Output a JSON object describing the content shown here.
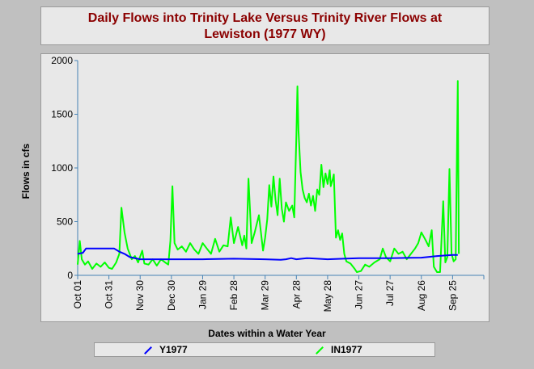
{
  "title_lines": [
    "Daily Flows into Trinity Lake Versus Trinity River Flows at",
    "Lewiston (1977 WY)"
  ],
  "chart_data": {
    "type": "line",
    "title": "Daily Flows into Trinity Lake Versus Trinity River Flows at Lewiston (1977 WY)",
    "xlabel": "Dates within a Water Year",
    "ylabel": "Flows in cfs",
    "ylim": [
      0,
      2000
    ],
    "yticks": [
      0,
      500,
      1000,
      1500,
      2000
    ],
    "xlim": [
      0,
      390
    ],
    "xticks": [
      {
        "day": 0,
        "label": "Oct 01"
      },
      {
        "day": 30,
        "label": "Oct 31"
      },
      {
        "day": 60,
        "label": "Nov 30"
      },
      {
        "day": 90,
        "label": "Dec 30"
      },
      {
        "day": 120,
        "label": "Jan 29"
      },
      {
        "day": 150,
        "label": "Feb 28"
      },
      {
        "day": 180,
        "label": "Mar 29"
      },
      {
        "day": 210,
        "label": "Apr 28"
      },
      {
        "day": 240,
        "label": "May 28"
      },
      {
        "day": 270,
        "label": "Jun 27"
      },
      {
        "day": 300,
        "label": "Jul 27"
      },
      {
        "day": 330,
        "label": "Aug 26"
      },
      {
        "day": 360,
        "label": "Sep 25"
      }
    ],
    "grid": false,
    "legend_position": "bottom",
    "series": [
      {
        "name": "Y1977",
        "color": "#0000ff",
        "points": [
          [
            0,
            200
          ],
          [
            5,
            210
          ],
          [
            8,
            250
          ],
          [
            35,
            250
          ],
          [
            40,
            220
          ],
          [
            45,
            200
          ],
          [
            50,
            170
          ],
          [
            60,
            150
          ],
          [
            90,
            150
          ],
          [
            120,
            150
          ],
          [
            150,
            155
          ],
          [
            180,
            150
          ],
          [
            195,
            145
          ],
          [
            200,
            150
          ],
          [
            205,
            160
          ],
          [
            210,
            150
          ],
          [
            220,
            160
          ],
          [
            240,
            150
          ],
          [
            255,
            155
          ],
          [
            270,
            160
          ],
          [
            300,
            160
          ],
          [
            330,
            165
          ],
          [
            345,
            180
          ],
          [
            360,
            190
          ],
          [
            365,
            190
          ]
        ]
      },
      {
        "name": "IN1977",
        "color": "#00ff00",
        "points": [
          [
            0,
            100
          ],
          [
            2,
            320
          ],
          [
            4,
            150
          ],
          [
            7,
            100
          ],
          [
            10,
            130
          ],
          [
            14,
            60
          ],
          [
            18,
            110
          ],
          [
            22,
            80
          ],
          [
            26,
            120
          ],
          [
            30,
            70
          ],
          [
            33,
            60
          ],
          [
            37,
            120
          ],
          [
            40,
            200
          ],
          [
            42,
            630
          ],
          [
            45,
            400
          ],
          [
            48,
            250
          ],
          [
            52,
            150
          ],
          [
            55,
            180
          ],
          [
            58,
            120
          ],
          [
            62,
            230
          ],
          [
            64,
            110
          ],
          [
            68,
            100
          ],
          [
            72,
            150
          ],
          [
            76,
            90
          ],
          [
            80,
            150
          ],
          [
            84,
            120
          ],
          [
            87,
            100
          ],
          [
            89,
            320
          ],
          [
            91,
            830
          ],
          [
            93,
            300
          ],
          [
            96,
            240
          ],
          [
            100,
            270
          ],
          [
            104,
            220
          ],
          [
            108,
            300
          ],
          [
            112,
            240
          ],
          [
            116,
            200
          ],
          [
            120,
            300
          ],
          [
            124,
            250
          ],
          [
            128,
            200
          ],
          [
            132,
            340
          ],
          [
            136,
            220
          ],
          [
            140,
            280
          ],
          [
            144,
            270
          ],
          [
            147,
            540
          ],
          [
            150,
            300
          ],
          [
            154,
            450
          ],
          [
            158,
            280
          ],
          [
            160,
            370
          ],
          [
            162,
            250
          ],
          [
            164,
            900
          ],
          [
            167,
            300
          ],
          [
            170,
            400
          ],
          [
            174,
            560
          ],
          [
            176,
            400
          ],
          [
            178,
            230
          ],
          [
            180,
            350
          ],
          [
            182,
            520
          ],
          [
            184,
            840
          ],
          [
            186,
            640
          ],
          [
            188,
            920
          ],
          [
            190,
            700
          ],
          [
            192,
            560
          ],
          [
            194,
            900
          ],
          [
            196,
            620
          ],
          [
            198,
            500
          ],
          [
            200,
            680
          ],
          [
            203,
            600
          ],
          [
            206,
            650
          ],
          [
            208,
            540
          ],
          [
            210,
            1300
          ],
          [
            211,
            1760
          ],
          [
            212,
            1350
          ],
          [
            214,
            960
          ],
          [
            216,
            800
          ],
          [
            218,
            720
          ],
          [
            220,
            680
          ],
          [
            222,
            760
          ],
          [
            224,
            650
          ],
          [
            226,
            740
          ],
          [
            228,
            600
          ],
          [
            230,
            800
          ],
          [
            232,
            750
          ],
          [
            234,
            1030
          ],
          [
            236,
            820
          ],
          [
            238,
            950
          ],
          [
            240,
            850
          ],
          [
            242,
            980
          ],
          [
            243,
            830
          ],
          [
            245,
            900
          ],
          [
            246,
            940
          ],
          [
            248,
            350
          ],
          [
            250,
            420
          ],
          [
            252,
            330
          ],
          [
            254,
            390
          ],
          [
            256,
            200
          ],
          [
            258,
            130
          ],
          [
            262,
            110
          ],
          [
            266,
            60
          ],
          [
            268,
            30
          ],
          [
            272,
            40
          ],
          [
            276,
            100
          ],
          [
            280,
            80
          ],
          [
            285,
            120
          ],
          [
            290,
            150
          ],
          [
            293,
            250
          ],
          [
            296,
            170
          ],
          [
            300,
            130
          ],
          [
            304,
            250
          ],
          [
            308,
            200
          ],
          [
            312,
            220
          ],
          [
            316,
            150
          ],
          [
            320,
            200
          ],
          [
            324,
            250
          ],
          [
            327,
            300
          ],
          [
            330,
            400
          ],
          [
            334,
            330
          ],
          [
            337,
            270
          ],
          [
            340,
            420
          ],
          [
            342,
            80
          ],
          [
            345,
            30
          ],
          [
            348,
            30
          ],
          [
            351,
            690
          ],
          [
            353,
            120
          ],
          [
            355,
            170
          ],
          [
            357,
            990
          ],
          [
            359,
            200
          ],
          [
            361,
            130
          ],
          [
            363,
            150
          ],
          [
            365,
            1810
          ],
          [
            366,
            200
          ]
        ]
      }
    ]
  },
  "legend": [
    {
      "name": "Y1977",
      "color": "#0000ff"
    },
    {
      "name": "IN1977",
      "color": "#00ff00"
    }
  ]
}
